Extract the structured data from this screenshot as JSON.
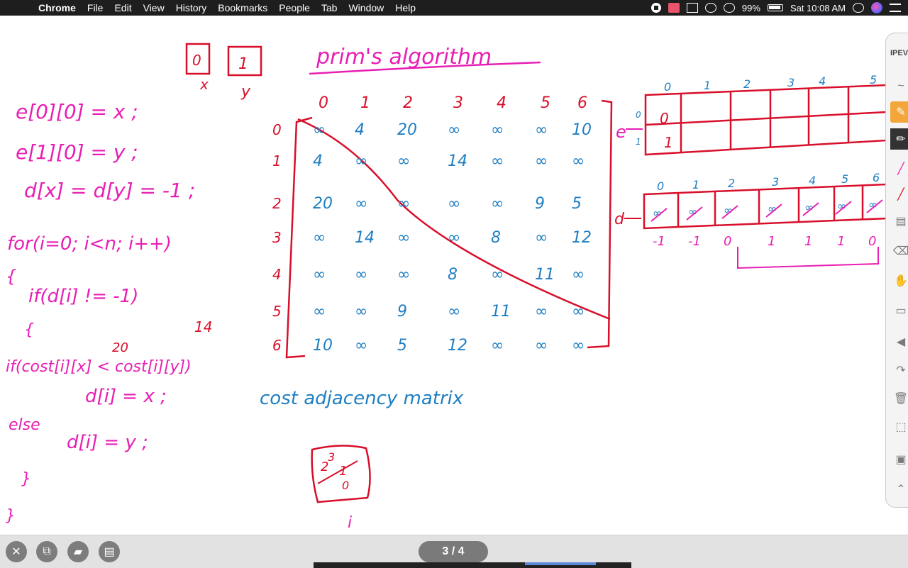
{
  "menubar": {
    "apple": "",
    "app_name": "Chrome",
    "menus": [
      "File",
      "Edit",
      "View",
      "History",
      "Bookmarks",
      "People",
      "Tab",
      "Window",
      "Help"
    ],
    "battery": "99%",
    "clock": "Sat 10:08 AM"
  },
  "whiteboard": {
    "title": "prim's algorithm",
    "boxes": {
      "x_val": "0",
      "x_label": "x",
      "y_val": "1",
      "y_label": "y"
    },
    "code_lines": [
      "e[0][0] = x ;",
      "e[1][0] = y ;",
      "d[x] = d[y] = -1 ;",
      "for(i=0; i<n; i++)",
      "{",
      "if(d[i] != -1)",
      "{",
      "if(cost[i][x] < cost[i][y])",
      "d[i] = x ;",
      "else",
      "d[i] = y ;",
      "}",
      "}"
    ],
    "matrix": {
      "col_headers": [
        "0",
        "1",
        "2",
        "3",
        "4",
        "5",
        "6"
      ],
      "row_headers": [
        "0",
        "1",
        "2",
        "3",
        "4",
        "5",
        "6"
      ],
      "rows": [
        [
          "∞",
          "4",
          "20",
          "∞",
          "∞",
          "∞",
          "10"
        ],
        [
          "4",
          "∞",
          "∞",
          "14",
          "∞",
          "∞",
          "∞"
        ],
        [
          "20",
          "∞",
          "∞",
          "∞",
          "∞",
          "9",
          "5"
        ],
        [
          "∞",
          "14",
          "∞",
          "∞",
          "8",
          "∞",
          "12"
        ],
        [
          "∞",
          "∞",
          "∞",
          "8",
          "∞",
          "11",
          "∞"
        ],
        [
          "∞",
          "∞",
          "9",
          "∞",
          "11",
          "∞",
          "∞"
        ],
        [
          "10",
          "∞",
          "5",
          "12",
          "∞",
          "∞",
          "∞"
        ]
      ],
      "caption": "cost adjacency matrix"
    },
    "annotation_14": "14",
    "annotation_20": "20",
    "e_array": {
      "label": "e",
      "col_headers": [
        "0",
        "1",
        "2",
        "3",
        "4",
        "5"
      ],
      "row_headers": [
        "0",
        "1"
      ],
      "values": [
        "0",
        "1"
      ]
    },
    "d_array": {
      "label": "d",
      "col_headers": [
        "0",
        "1",
        "2",
        "3",
        "4",
        "5",
        "6"
      ],
      "below": [
        "-1",
        "-1",
        "0",
        "1",
        "1",
        "1",
        "0"
      ]
    },
    "stack_box": {
      "values": [
        "2",
        "3",
        "1",
        "0"
      ],
      "label": "i"
    }
  },
  "palette": {
    "header": "IPEV",
    "tools": [
      "pen-tool",
      "eraser-tool",
      "hand-tool",
      "shapes-tool",
      "undo-tool",
      "redo-tool",
      "delete-tool",
      "select-tool",
      "camera-tool",
      "collapse-tool"
    ]
  },
  "bottombar": {
    "page_indicator": "3 / 4"
  },
  "colors": {
    "magenta": "#e81eb4",
    "red": "#d80f2a",
    "blue": "#1f7fc2",
    "menubar": "#1e1e1e"
  }
}
